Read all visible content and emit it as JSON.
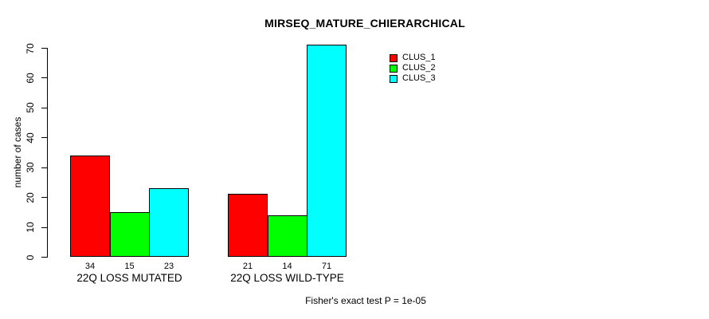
{
  "chart_data": {
    "type": "bar",
    "title": "MIRSEQ_MATURE_CHIERARCHICAL",
    "ylabel": "number of cases",
    "xlabel": "",
    "annotation": "Fisher's exact test P = 1e-05",
    "ylim": [
      0,
      70
    ],
    "yticks": [
      0,
      10,
      20,
      30,
      40,
      50,
      60,
      70
    ],
    "grid": false,
    "legend_position": "top-right",
    "categories": [
      "22Q LOSS MUTATED",
      "22Q LOSS WILD-TYPE"
    ],
    "series": [
      {
        "name": "CLUS_1",
        "color": "#ff0000",
        "values": [
          34,
          21
        ]
      },
      {
        "name": "CLUS_2",
        "color": "#00ff00",
        "values": [
          15,
          14
        ]
      },
      {
        "name": "CLUS_3",
        "color": "#00ffff",
        "values": [
          23,
          71
        ]
      }
    ],
    "bar_value_labels_shown": true,
    "colors": {
      "background": "#ffffff",
      "axis": "#000000",
      "text": "#000000",
      "bar_border": "#000000"
    }
  }
}
